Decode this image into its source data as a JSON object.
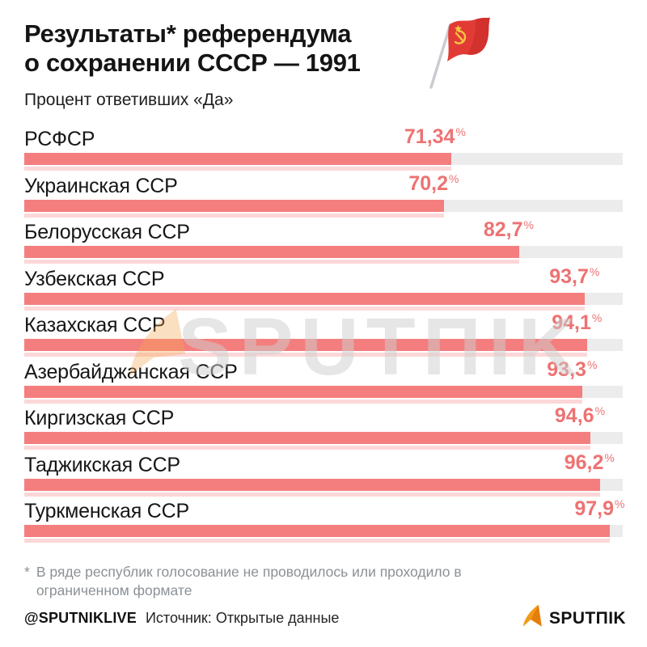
{
  "header": {
    "title_lines": [
      "Результаты* референдума",
      "о сохранении СССР — 1991"
    ],
    "subtitle": "Процент ответивших «Да»"
  },
  "chart_data": {
    "type": "bar",
    "orientation": "horizontal",
    "title": "Результаты* референдума о сохранении СССР — 1991",
    "subtitle": "Процент ответивших «Да»",
    "unit": "%",
    "xlim": [
      0,
      100
    ],
    "grid": false,
    "legend": false,
    "categories": [
      "РСФСР",
      "Украинская ССР",
      "Белорусская ССР",
      "Узбекская ССР",
      "Казахская ССР",
      "Азербайджанская ССР",
      "Киргизская ССР",
      "Таджикская ССР",
      "Туркменская ССР"
    ],
    "values": [
      71.34,
      70.2,
      82.7,
      93.7,
      94.1,
      93.3,
      94.6,
      96.2,
      97.9
    ],
    "value_labels": [
      "71,34",
      "70,2",
      "82,7",
      "93,7",
      "94,1",
      "93,3",
      "94,6",
      "96,2",
      "97,9"
    ]
  },
  "colors": {
    "bar": "#F47E7E",
    "track": "#ECECEC",
    "reflect": "rgba(244,126,126,0.3)",
    "value": "#ED7272",
    "flag_red": "#E23B35",
    "flag_red_dark": "#CC2F2B",
    "flag_gold": "#F5C542",
    "logo_orange": "#F39919"
  },
  "watermark": {
    "text": "SPUTΠIK"
  },
  "footnote": {
    "marker": "*",
    "text": "В ряде республик голосование не проводилось или проходило в ограниченном формате"
  },
  "footer": {
    "handle": "@SPUTNIKLIVE",
    "source": "Источник: Открытые данные",
    "logo_text": "SPUTΠIK"
  }
}
